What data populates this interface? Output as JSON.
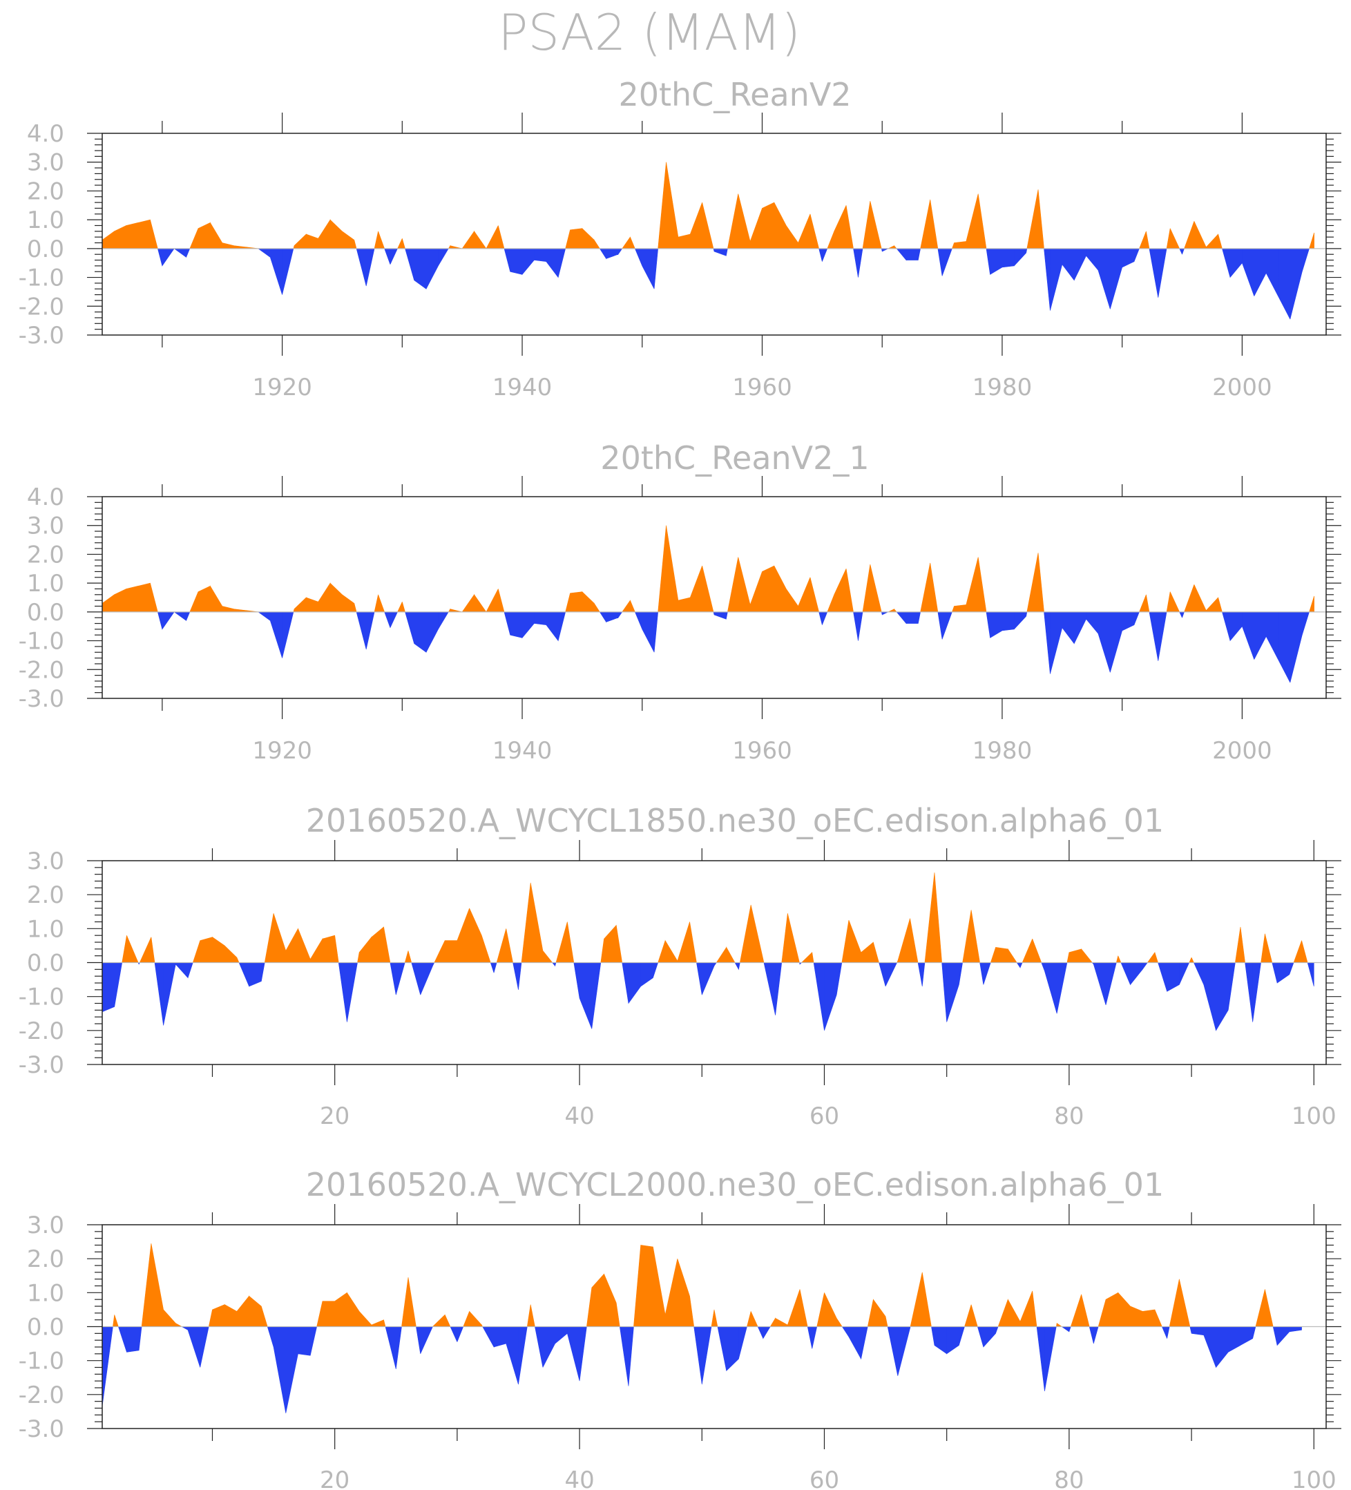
{
  "main_title": "PSA2 (MAM)",
  "colors": {
    "positive": "#ff8000",
    "negative": "#2640f0",
    "text": "#b8b8b8",
    "frame": "#222222"
  },
  "chart_data": [
    {
      "type": "area",
      "title": "20thC_ReanV2",
      "ylim": [
        -3,
        4
      ],
      "yticks": [
        -3,
        -2,
        -1,
        0,
        1,
        2,
        3,
        4
      ],
      "ytick_labels": [
        "-3.0",
        "-2.0",
        "-1.0",
        "0.0",
        "1.0",
        "2.0",
        "3.0",
        "4.0"
      ],
      "xlim": [
        1905,
        2007
      ],
      "xticks": [
        1920,
        1940,
        1960,
        1980,
        2000
      ],
      "xtick_labels": [
        "1920",
        "1940",
        "1960",
        "1980",
        "2000"
      ],
      "x_start": 1905,
      "values": [
        0.3,
        0.6,
        0.8,
        0.9,
        1.0,
        -0.6,
        0.0,
        -0.3,
        0.7,
        0.9,
        0.2,
        0.1,
        0.05,
        0.0,
        -0.3,
        -1.6,
        0.1,
        0.5,
        0.35,
        1.0,
        0.6,
        0.3,
        -1.3,
        0.6,
        -0.55,
        0.35,
        -1.1,
        -1.4,
        -0.6,
        0.1,
        0.0,
        0.6,
        0.0,
        0.8,
        -0.8,
        -0.9,
        -0.4,
        -0.45,
        -1.0,
        0.65,
        0.7,
        0.3,
        -0.35,
        -0.2,
        0.4,
        -0.6,
        -1.4,
        3.0,
        0.4,
        0.5,
        1.6,
        -0.1,
        -0.25,
        1.9,
        0.25,
        1.4,
        1.6,
        0.8,
        0.2,
        1.2,
        -0.45,
        0.6,
        1.5,
        -1.0,
        1.65,
        -0.1,
        0.1,
        -0.4,
        -0.4,
        1.7,
        -0.95,
        0.2,
        0.25,
        1.9,
        -0.9,
        -0.65,
        -0.6,
        -0.15,
        2.05,
        -2.15,
        -0.55,
        -1.1,
        -0.25,
        -0.75,
        -2.1,
        -0.65,
        -0.45,
        0.6,
        -1.7,
        0.7,
        -0.2,
        0.95,
        0.05,
        0.5,
        -1.0,
        -0.5,
        -1.65,
        -0.85,
        -1.65,
        -2.45,
        -0.8,
        0.55
      ]
    },
    {
      "type": "area",
      "title": "20thC_ReanV2_1",
      "ylim": [
        -3,
        4
      ],
      "yticks": [
        -3,
        -2,
        -1,
        0,
        1,
        2,
        3,
        4
      ],
      "ytick_labels": [
        "-3.0",
        "-2.0",
        "-1.0",
        "0.0",
        "1.0",
        "2.0",
        "3.0",
        "4.0"
      ],
      "xlim": [
        1905,
        2007
      ],
      "xticks": [
        1920,
        1940,
        1960,
        1980,
        2000
      ],
      "xtick_labels": [
        "1920",
        "1940",
        "1960",
        "1980",
        "2000"
      ],
      "x_start": 1905,
      "values": [
        0.3,
        0.6,
        0.8,
        0.9,
        1.0,
        -0.6,
        0.0,
        -0.3,
        0.7,
        0.9,
        0.2,
        0.1,
        0.05,
        0.0,
        -0.3,
        -1.6,
        0.1,
        0.5,
        0.35,
        1.0,
        0.6,
        0.3,
        -1.3,
        0.6,
        -0.55,
        0.35,
        -1.1,
        -1.4,
        -0.6,
        0.1,
        0.0,
        0.6,
        0.0,
        0.8,
        -0.8,
        -0.9,
        -0.4,
        -0.45,
        -1.0,
        0.65,
        0.7,
        0.3,
        -0.35,
        -0.2,
        0.4,
        -0.6,
        -1.4,
        3.0,
        0.4,
        0.5,
        1.6,
        -0.1,
        -0.25,
        1.9,
        0.25,
        1.4,
        1.6,
        0.8,
        0.2,
        1.2,
        -0.45,
        0.6,
        1.5,
        -1.0,
        1.65,
        -0.1,
        0.1,
        -0.4,
        -0.4,
        1.7,
        -0.95,
        0.2,
        0.25,
        1.9,
        -0.9,
        -0.65,
        -0.6,
        -0.15,
        2.05,
        -2.15,
        -0.55,
        -1.1,
        -0.25,
        -0.75,
        -2.1,
        -0.65,
        -0.45,
        0.6,
        -1.7,
        0.7,
        -0.2,
        0.95,
        0.05,
        0.5,
        -1.0,
        -0.5,
        -1.65,
        -0.85,
        -1.65,
        -2.45,
        -0.8,
        0.55
      ]
    },
    {
      "type": "area",
      "title": "20160520.A_WCYCL1850.ne30_oEC.edison.alpha6_01",
      "ylim": [
        -3,
        3
      ],
      "yticks": [
        -3,
        -2,
        -1,
        0,
        1,
        2,
        3
      ],
      "ytick_labels": [
        "-3.0",
        "-2.0",
        "-1.0",
        "0.0",
        "1.0",
        "2.0",
        "3.0"
      ],
      "xlim": [
        1,
        101
      ],
      "xticks": [
        20,
        40,
        60,
        80,
        100
      ],
      "xtick_labels": [
        "20",
        "40",
        "60",
        "80",
        "100"
      ],
      "x_start": 1,
      "values": [
        -1.45,
        -1.3,
        0.8,
        -0.05,
        0.75,
        -1.85,
        -0.05,
        -0.45,
        0.65,
        0.75,
        0.5,
        0.15,
        -0.7,
        -0.55,
        1.45,
        0.35,
        1.0,
        0.1,
        0.7,
        0.8,
        -1.75,
        0.3,
        0.75,
        1.05,
        -0.95,
        0.35,
        -0.95,
        -0.1,
        0.65,
        0.65,
        1.6,
        0.8,
        -0.3,
        1.0,
        -0.8,
        2.35,
        0.35,
        -0.1,
        1.2,
        -1.05,
        -1.95,
        0.7,
        1.1,
        -1.2,
        -0.7,
        -0.45,
        0.65,
        0.05,
        1.2,
        -0.95,
        -0.1,
        0.45,
        -0.2,
        1.7,
        0.1,
        -1.55,
        1.45,
        -0.05,
        0.3,
        -2.0,
        -0.95,
        1.25,
        0.3,
        0.6,
        -0.7,
        0.05,
        1.3,
        -0.7,
        2.65,
        -1.75,
        -0.65,
        1.55,
        -0.65,
        0.45,
        0.4,
        -0.15,
        0.7,
        -0.25,
        -1.5,
        0.3,
        0.4,
        -0.05,
        -1.25,
        0.2,
        -0.65,
        -0.2,
        0.3,
        -0.85,
        -0.65,
        0.15,
        -0.65,
        -2.0,
        -1.4,
        1.05,
        -1.75,
        0.85,
        -0.6,
        -0.35,
        0.65,
        -0.7
      ]
    },
    {
      "type": "area",
      "title": "20160520.A_WCYCL2000.ne30_oEC.edison.alpha6_01",
      "ylim": [
        -3,
        3
      ],
      "yticks": [
        -3,
        -2,
        -1,
        0,
        1,
        2,
        3
      ],
      "ytick_labels": [
        "-3.0",
        "-2.0",
        "-1.0",
        "0.0",
        "1.0",
        "2.0",
        "3.0"
      ],
      "xlim": [
        1,
        101
      ],
      "xticks": [
        20,
        40,
        60,
        80,
        100
      ],
      "xtick_labels": [
        "20",
        "40",
        "60",
        "80",
        "100"
      ],
      "x_start": 1,
      "values": [
        -2.35,
        0.35,
        -0.75,
        -0.7,
        2.45,
        0.5,
        0.1,
        -0.1,
        -1.2,
        0.5,
        0.65,
        0.45,
        0.9,
        0.6,
        -0.6,
        -2.55,
        -0.8,
        -0.85,
        0.75,
        0.75,
        1.0,
        0.45,
        0.05,
        0.2,
        -1.25,
        1.45,
        -0.8,
        0.0,
        0.35,
        -0.45,
        0.45,
        0.05,
        -0.6,
        -0.5,
        -1.7,
        0.65,
        -1.2,
        -0.5,
        -0.2,
        -1.6,
        1.15,
        1.55,
        0.7,
        -1.75,
        2.4,
        2.35,
        0.35,
        2.0,
        0.9,
        -1.7,
        0.5,
        -1.3,
        -0.95,
        0.45,
        -0.35,
        0.25,
        0.05,
        1.1,
        -0.65,
        1.0,
        0.25,
        -0.3,
        -0.95,
        0.8,
        0.3,
        -1.45,
        -0.05,
        1.6,
        -0.55,
        -0.8,
        -0.55,
        0.65,
        -0.6,
        -0.2,
        0.8,
        0.15,
        1.05,
        -1.9,
        0.1,
        -0.15,
        0.95,
        -0.5,
        0.8,
        1.0,
        0.6,
        0.45,
        0.5,
        -0.35,
        1.4,
        -0.2,
        -0.25,
        -1.2,
        -0.75,
        -0.55,
        -0.35,
        1.1,
        -0.55,
        -0.15,
        -0.1
      ]
    }
  ]
}
